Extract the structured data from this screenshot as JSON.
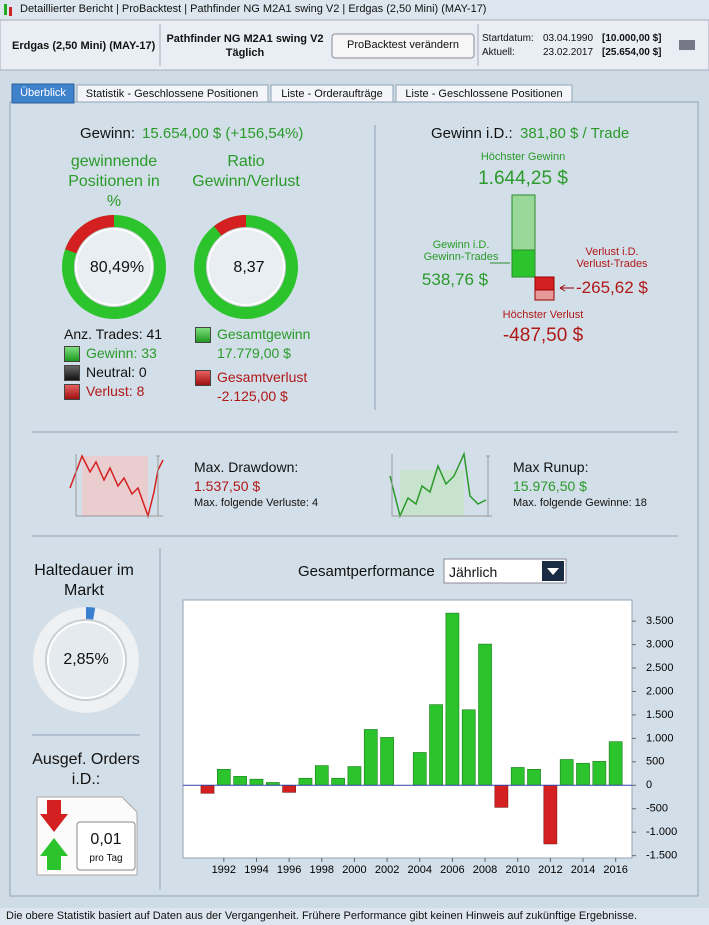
{
  "window": {
    "title": "Detaillierter Bericht | ProBacktest | Pathfinder NG M2A1 swing V2 | Erdgas (2,50 Mini) (MAY-17)"
  },
  "header": {
    "instrument": "Erdgas (2,50 Mini) (MAY-17)",
    "strategy": "Pathfinder NG M2A1 swing V2",
    "timeframe": "Täglich",
    "button": "ProBacktest verändern",
    "start_label": "Startdatum:",
    "start_date": "03.04.1990",
    "start_capital": "[10.000,00 $]",
    "current_label": "Aktuell:",
    "current_date": "23.02.2017",
    "current_capital": "[25.654,00 $]"
  },
  "tabs": [
    "Überblick",
    "Statistik - Geschlossene Positionen",
    "Liste - Orderaufträge",
    "Liste - Geschlossene Positionen"
  ],
  "summary": {
    "gain_label": "Gewinn:",
    "gain_value": "15.654,00 $ (+156,54%)",
    "win_pct_title": "gewinnende Positionen in %",
    "win_pct": "80,49%",
    "ratio_title": "Ratio Gewinn/Verlust",
    "ratio": "8,37",
    "trades": "Anz. Trades: 41",
    "wins": "Gewinn: 33",
    "neutral": "Neutral: 0",
    "losses": "Verlust: 8",
    "total_gain_label": "Gesamtgewinn",
    "total_gain": "17.779,00 $",
    "total_loss_label": "Gesamtverlust",
    "total_loss": "-2.125,00 $"
  },
  "average": {
    "label": "Gewinn i.D.:",
    "value": "381,80 $ / Trade",
    "max_gain_label": "Höchster Gewinn",
    "max_gain": "1.644,25 $",
    "avg_win_label": "Gewinn i.D. Gewinn-Trades",
    "avg_win": "538,76 $",
    "avg_loss_label": "Verlust i.D. Verlust-Trades",
    "avg_loss": "-265,62 $",
    "max_loss_label": "Höchster Verlust",
    "max_loss": "-487,50 $"
  },
  "drawdown": {
    "label": "Max. Drawdown:",
    "value": "1.537,50 $",
    "streak": "Max. folgende Verluste: 4"
  },
  "runup": {
    "label": "Max Runup:",
    "value": "15.976,50 $",
    "streak": "Max. folgende Gewinne: 18"
  },
  "holding": {
    "label": "Haltedauer im Markt",
    "value": "2,85%"
  },
  "orders": {
    "label": "Ausgef. Orders i.D.:",
    "value": "0,01",
    "unit": "pro Tag"
  },
  "chart_data": {
    "type": "bar",
    "title": "Gesamtperformance",
    "period": "Jährlich",
    "x": [
      1991,
      1992,
      1993,
      1994,
      1995,
      1996,
      1997,
      1998,
      1999,
      2000,
      2001,
      2002,
      2003,
      2004,
      2005,
      2006,
      2007,
      2008,
      2009,
      2010,
      2011,
      2012,
      2013,
      2014,
      2015,
      2016
    ],
    "values": [
      -170,
      340,
      190,
      130,
      60,
      -150,
      150,
      420,
      150,
      400,
      1190,
      1020,
      0,
      700,
      1720,
      3670,
      1610,
      3010,
      -470,
      380,
      340,
      -1250,
      550,
      470,
      510,
      930
    ],
    "color": "#2cc42c",
    "negative_color": "#d42020",
    "zero_line_color": "#3344aa",
    "xlim": [
      1989.5,
      2017
    ],
    "xticks": [
      1992,
      1994,
      1996,
      1998,
      2000,
      2002,
      2004,
      2006,
      2008,
      2010,
      2012,
      2014,
      2016
    ],
    "ylim": [
      -1550,
      3950
    ],
    "yticks": [
      {
        "value": -1500,
        "label": "-1.500"
      },
      {
        "value": -1000,
        "label": "-1.000"
      },
      -500,
      0,
      500,
      {
        "value": 1000,
        "label": "1.000"
      },
      {
        "value": 1500,
        "label": "1.500"
      },
      {
        "value": 2000,
        "label": "2.000"
      },
      {
        "value": 2500,
        "label": "2.500"
      },
      {
        "value": 3000,
        "label": "3.000"
      },
      {
        "value": 3500,
        "label": "3.500"
      }
    ],
    "grid": false
  },
  "footer": "Die obere Statistik basiert auf Daten aus der Vergangenheit. Frühere Performance gibt keinen Hinweis auf zukünftige Ergebnisse."
}
